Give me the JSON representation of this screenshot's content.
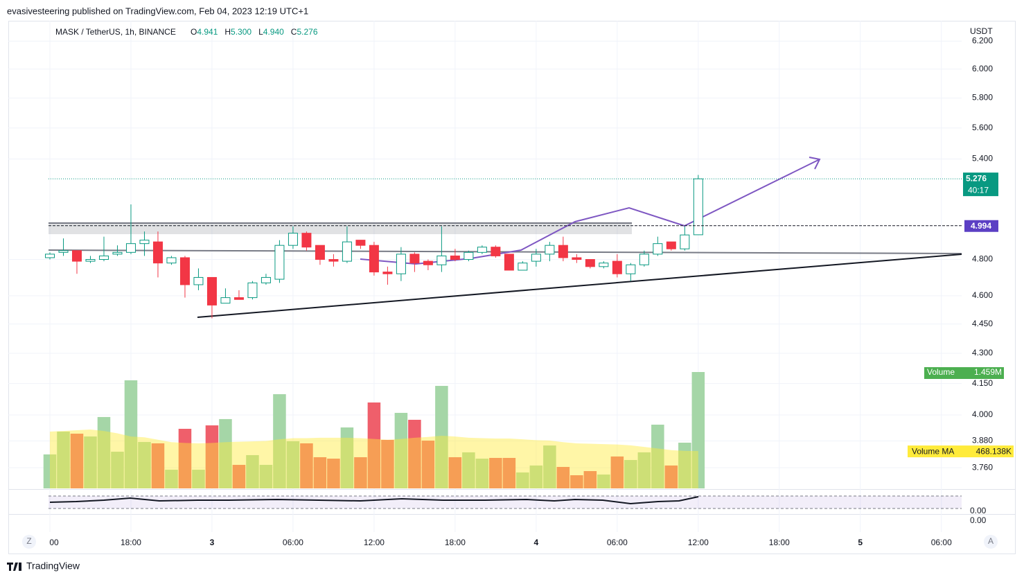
{
  "chart_data": {
    "type": "candlestick",
    "publisher": "evasivesteering published on TradingView.com, Feb 04, 2023 12:19 UTC+1",
    "title": "MASK / TetherUS, 1h, BINANCE",
    "ohlc_legend": [
      {
        "name": "O",
        "text": "4.941"
      },
      {
        "name": "H",
        "text": "5.300"
      },
      {
        "name": "L",
        "text": "4.940"
      },
      {
        "name": "C",
        "text": "5.276"
      }
    ],
    "unit": "USDT",
    "log_scale": true,
    "grid": true,
    "up_color": "#089981",
    "down_color": "#f23645",
    "open": [
      4.81,
      4.84,
      4.85,
      4.79,
      4.8,
      4.83,
      4.84,
      4.89,
      4.9,
      4.78,
      4.81,
      4.66,
      4.7,
      4.56,
      4.59,
      4.59,
      4.67,
      4.69,
      4.88,
      4.95,
      4.88,
      4.8,
      4.79,
      4.91,
      4.88,
      4.73,
      4.72,
      4.83,
      4.79,
      4.77,
      4.82,
      4.8,
      4.84,
      4.87,
      4.83,
      4.74,
      4.79,
      4.83,
      4.88,
      4.81,
      4.8,
      4.76,
      4.79,
      4.72,
      4.77,
      4.83,
      4.9,
      4.86,
      4.941
    ],
    "high": [
      4.84,
      4.92,
      4.85,
      4.82,
      4.93,
      4.88,
      5.12,
      4.96,
      4.96,
      4.82,
      4.82,
      4.75,
      4.7,
      4.64,
      4.63,
      4.68,
      4.72,
      4.91,
      4.99,
      4.96,
      4.88,
      4.83,
      4.99,
      4.91,
      4.9,
      4.76,
      4.87,
      4.84,
      4.8,
      4.99,
      4.86,
      4.85,
      4.88,
      4.88,
      4.83,
      4.79,
      4.86,
      4.9,
      4.93,
      4.83,
      4.8,
      4.79,
      4.83,
      4.78,
      4.85,
      4.93,
      4.9,
      4.99,
      5.3
    ],
    "low": [
      4.8,
      4.82,
      4.72,
      4.78,
      4.79,
      4.82,
      4.83,
      4.82,
      4.7,
      4.77,
      4.59,
      4.63,
      4.48,
      4.56,
      4.58,
      4.58,
      4.66,
      4.67,
      4.86,
      4.85,
      4.77,
      4.76,
      4.78,
      4.86,
      4.71,
      4.66,
      4.68,
      4.73,
      4.74,
      4.73,
      4.79,
      4.79,
      4.83,
      4.81,
      4.74,
      4.74,
      4.76,
      4.79,
      4.79,
      4.78,
      4.75,
      4.75,
      4.7,
      4.68,
      4.76,
      4.82,
      4.85,
      4.85,
      4.94
    ],
    "close": [
      4.83,
      4.85,
      4.79,
      4.8,
      4.82,
      4.84,
      4.89,
      4.91,
      4.78,
      4.81,
      4.66,
      4.7,
      4.55,
      4.59,
      4.58,
      4.67,
      4.7,
      4.88,
      4.95,
      4.87,
      4.8,
      4.79,
      4.9,
      4.88,
      4.73,
      4.72,
      4.83,
      4.78,
      4.77,
      4.82,
      4.8,
      4.84,
      4.87,
      4.82,
      4.74,
      4.78,
      4.83,
      4.88,
      4.81,
      4.8,
      4.76,
      4.78,
      4.72,
      4.77,
      4.83,
      4.89,
      4.86,
      4.94,
      5.276
    ],
    "volume": [
      426000,
      712000,
      686000,
      651000,
      895000,
      460000,
      1355000,
      582000,
      565000,
      234000,
      747000,
      234000,
      790000,
      869000,
      295000,
      417000,
      295000,
      1181000,
      591000,
      565000,
      391000,
      373000,
      764000,
      391000,
      1077000,
      608000,
      947000,
      860000,
      599000,
      1285000,
      391000,
      452000,
      373000,
      382000,
      382000,
      200000,
      287000,
      538000,
      269000,
      165000,
      217000,
      174000,
      400000,
      356000,
      452000,
      799000,
      287000,
      573000,
      1459000
    ],
    "volume_ma": [
      712000,
      720000,
      730000,
      738000,
      720000,
      690000,
      650000,
      640000,
      610000,
      580000,
      570000,
      565000,
      570000,
      580000,
      585000,
      590000,
      595000,
      615000,
      630000,
      630000,
      635000,
      635000,
      635000,
      630000,
      620000,
      610000,
      620000,
      635000,
      645000,
      660000,
      650000,
      635000,
      630000,
      625000,
      625000,
      615000,
      605000,
      600000,
      580000,
      565000,
      560000,
      555000,
      550000,
      540000,
      520000,
      500000,
      480000,
      470000,
      468138
    ],
    "ylim": [
      3.67,
      6.35
    ],
    "yticks": [
      {
        "value": 6.2,
        "label": "6.200"
      },
      {
        "value": 6,
        "label": "6.000"
      },
      {
        "value": 5.8,
        "label": "5.800"
      },
      {
        "value": 5.6,
        "label": "5.600"
      },
      {
        "value": 5.4,
        "label": "5.400"
      },
      {
        "value": 4.8,
        "label": "4.800"
      },
      {
        "value": 4.6,
        "label": "4.600"
      },
      {
        "value": 4.45,
        "label": "4.450"
      },
      {
        "value": 4.3,
        "label": "4.300"
      },
      {
        "value": 4.15,
        "label": "4.150"
      },
      {
        "value": 4,
        "label": "4.000"
      },
      {
        "value": 3.88,
        "label": "3.880"
      },
      {
        "value": 3.76,
        "label": "3.760"
      }
    ],
    "xlim": [
      -0.2,
      67.5
    ],
    "xticks": [
      {
        "value": 0,
        "label": "00"
      },
      {
        "value": 6,
        "label": "18:00"
      },
      {
        "value": 12,
        "label": "3"
      },
      {
        "value": 18,
        "label": "06:00"
      },
      {
        "value": 24,
        "label": "12:00"
      },
      {
        "value": 30,
        "label": "18:00"
      },
      {
        "value": 36,
        "label": "4"
      },
      {
        "value": 42,
        "label": "06:00"
      },
      {
        "value": 48,
        "label": "12:00"
      },
      {
        "value": 54,
        "label": "18:00"
      },
      {
        "value": 60,
        "label": "5"
      },
      {
        "value": 66,
        "label": "06:00"
      }
    ],
    "last_price": {
      "value": 5.276,
      "label": "5.276",
      "countdown": "40:17"
    },
    "level": {
      "value": 4.994,
      "label": "4.994"
    },
    "volume_legend": {
      "name": "Volume",
      "value": 1459000,
      "label": "1.459M"
    },
    "volume_ma_legend": {
      "name": "Volume MA",
      "value": 468138,
      "label": "468.138K"
    },
    "oscillator_ticks": [
      "0.00",
      "0.00"
    ],
    "scale_buttons": [
      "Z",
      "A"
    ],
    "brand": "TradingView"
  }
}
